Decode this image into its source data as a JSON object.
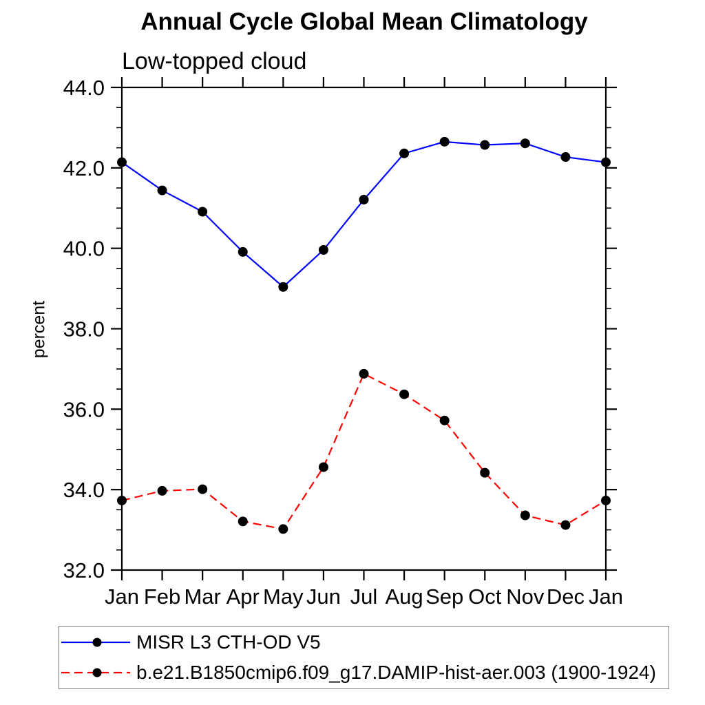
{
  "page": {
    "background_color": "#ffffff",
    "text_color": "#000000"
  },
  "chart_data": {
    "type": "line",
    "title": "Annual Cycle Global Mean Climatology",
    "subtitle": "Low-topped cloud",
    "ylabel": "percent",
    "xlabel": "",
    "x_tick_labels": [
      "Jan",
      "Feb",
      "Mar",
      "Apr",
      "May",
      "Jun",
      "Jul",
      "Aug",
      "Sep",
      "Oct",
      "Nov",
      "Dec",
      "Jan"
    ],
    "ylim": [
      32.0,
      44.0
    ],
    "y_major_ticks": [
      44,
      42,
      40,
      38,
      36,
      34,
      32
    ],
    "y_tick_labels": [
      "44.0",
      "42.0",
      "40.0",
      "38.0",
      "36.0",
      "34.0",
      "32.0"
    ],
    "y_minor_step": 0.5,
    "grid": false,
    "axis_color": "#000000",
    "legend_position": "bottom-left-box",
    "series": [
      {
        "name": "MISR L3 CTH-OD V5",
        "color": "#0000ff",
        "line_style": "solid",
        "marker": "filled-circle",
        "marker_color": "#000000",
        "values": [
          42.14,
          41.44,
          40.91,
          39.91,
          39.04,
          39.96,
          41.21,
          42.36,
          42.65,
          42.57,
          42.61,
          42.27,
          42.14
        ]
      },
      {
        "name": "b.e21.B1850cmip6.f09_g17.DAMIP-hist-aer.003 (1900-1924)",
        "color": "#ff0000",
        "line_style": "dashed",
        "marker": "filled-circle",
        "marker_color": "#000000",
        "values": [
          33.73,
          33.97,
          34.01,
          33.21,
          33.02,
          34.56,
          36.88,
          36.37,
          35.72,
          34.42,
          33.36,
          33.12,
          33.73
        ]
      }
    ]
  }
}
